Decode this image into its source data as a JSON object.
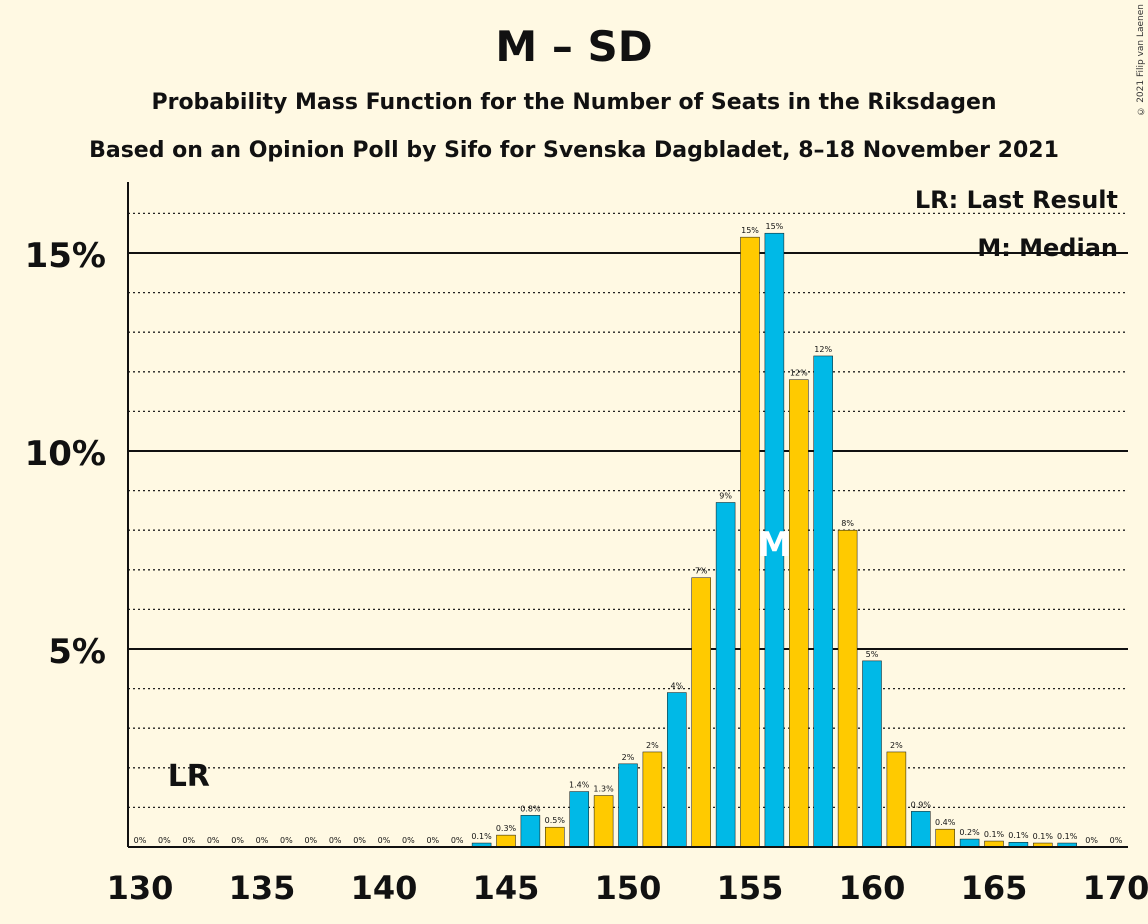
{
  "page": {
    "title": "M – SD",
    "subtitle1": "Probability Mass Function for the Number of Seats in the Riksdagen",
    "subtitle2": "Based on an Opinion Poll by Sifo for Svenska Dagbladet, 8–18 November 2021",
    "copyright": "© 2021 Filip van Laenen",
    "legend_lr": "LR: Last Result",
    "legend_m": "M: Median"
  },
  "chart_data": {
    "type": "bar",
    "title": "M – SD",
    "subtitle": "Probability Mass Function for the Number of Seats in the Riksdagen",
    "x": [
      130,
      131,
      132,
      133,
      134,
      135,
      136,
      137,
      138,
      139,
      140,
      141,
      142,
      143,
      144,
      145,
      146,
      147,
      148,
      149,
      150,
      151,
      152,
      153,
      154,
      155,
      156,
      157,
      158,
      159,
      160,
      161,
      162,
      163,
      164,
      165,
      166,
      167,
      168,
      169,
      170
    ],
    "values": [
      0,
      0,
      0,
      0,
      0,
      0,
      0,
      0,
      0,
      0,
      0,
      0,
      0,
      0,
      0.1,
      0.3,
      0.8,
      0.5,
      1.4,
      1.3,
      2.1,
      2.4,
      3.9,
      6.8,
      8.7,
      15.4,
      15.5,
      11.8,
      12.4,
      8.0,
      4.7,
      2.4,
      0.9,
      0.45,
      0.2,
      0.15,
      0.12,
      0.1,
      0.1,
      0,
      0
    ],
    "labels": [
      "0%",
      "0%",
      "0%",
      "0%",
      "0%",
      "0%",
      "0%",
      "0%",
      "0%",
      "0%",
      "0%",
      "0%",
      "0%",
      "0%",
      "0.1%",
      "0.3%",
      "0.8%",
      "0.5%",
      "1.4%",
      "1.3%",
      "2%",
      "2%",
      "4%",
      "7%",
      "9%",
      "15%",
      "15%",
      "12%",
      "12%",
      "8%",
      "5%",
      "2%",
      "0.9%",
      "0.4%",
      "0.2%",
      "0.1%",
      "0.1%",
      "0.1%",
      "0.1%",
      "0%",
      "0%"
    ],
    "colors": {
      "even": "#00b9e7",
      "odd": "#ffca00"
    },
    "x_ticks": [
      130,
      135,
      140,
      145,
      150,
      155,
      160,
      165,
      170
    ],
    "y_ticks": [
      {
        "v": 5,
        "label": "5%"
      },
      {
        "v": 10,
        "label": "10%"
      },
      {
        "v": 15,
        "label": "15%"
      }
    ],
    "ylim": [
      0,
      16.7
    ],
    "last_result": 132,
    "last_result_label": "LR",
    "median": 156,
    "median_label": "M",
    "legend": "top-right"
  }
}
